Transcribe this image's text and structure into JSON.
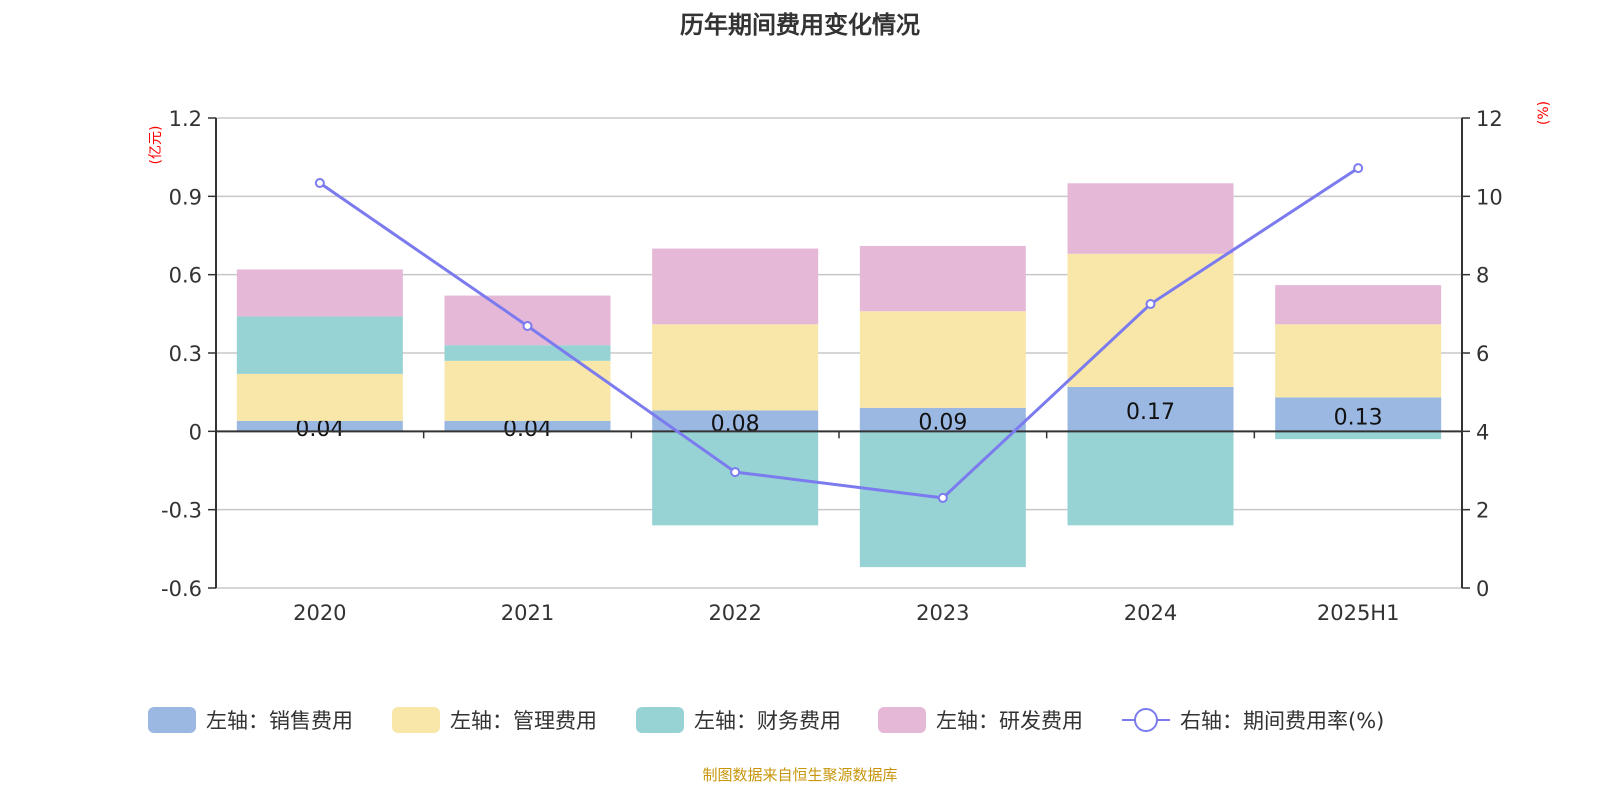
{
  "chart_data": {
    "type": "bar",
    "title": "历年期间费用变化情况",
    "left_axis_label": "(亿元)",
    "right_axis_label": "(%)",
    "categories": [
      "2020",
      "2021",
      "2022",
      "2023",
      "2024",
      "2025H1"
    ],
    "ylim_left": [
      -0.6,
      1.2
    ],
    "yticks_left": [
      "1.2",
      "0.9",
      "0.6",
      "0.3",
      "0",
      "-0.3",
      "-0.6"
    ],
    "ylim_right": [
      0,
      12
    ],
    "yticks_right": [
      "12",
      "10",
      "8",
      "6",
      "4",
      "2",
      "0"
    ],
    "grid": true,
    "legend_position": "bottom",
    "series": [
      {
        "name": "左轴：销售费用",
        "type": "bar",
        "color": "#9bb8e2",
        "values": [
          0.04,
          0.04,
          0.08,
          0.09,
          0.17,
          0.13
        ],
        "labels": [
          "0.04",
          "0.04",
          "0.08",
          "0.09",
          "0.17",
          "0.13"
        ]
      },
      {
        "name": "左轴：管理费用",
        "type": "bar",
        "color": "#f8e7a8",
        "values": [
          0.18,
          0.23,
          0.33,
          0.37,
          0.51,
          0.28
        ]
      },
      {
        "name": "左轴：财务费用",
        "type": "bar",
        "color": "#97d3d4",
        "values": [
          0.22,
          0.06,
          -0.36,
          -0.52,
          -0.36,
          -0.03
        ]
      },
      {
        "name": "左轴：研发费用",
        "type": "bar",
        "color": "#e6b8d8",
        "values": [
          0.18,
          0.19,
          0.29,
          0.25,
          0.27,
          0.15
        ]
      },
      {
        "name": "右轴：期间费用率(%)",
        "type": "line",
        "axis": "right",
        "color": "#7b7bef",
        "values": [
          10.34,
          6.69,
          2.96,
          2.3,
          7.25,
          10.72
        ]
      }
    ],
    "source": "制图数据来自恒生聚源数据库"
  }
}
